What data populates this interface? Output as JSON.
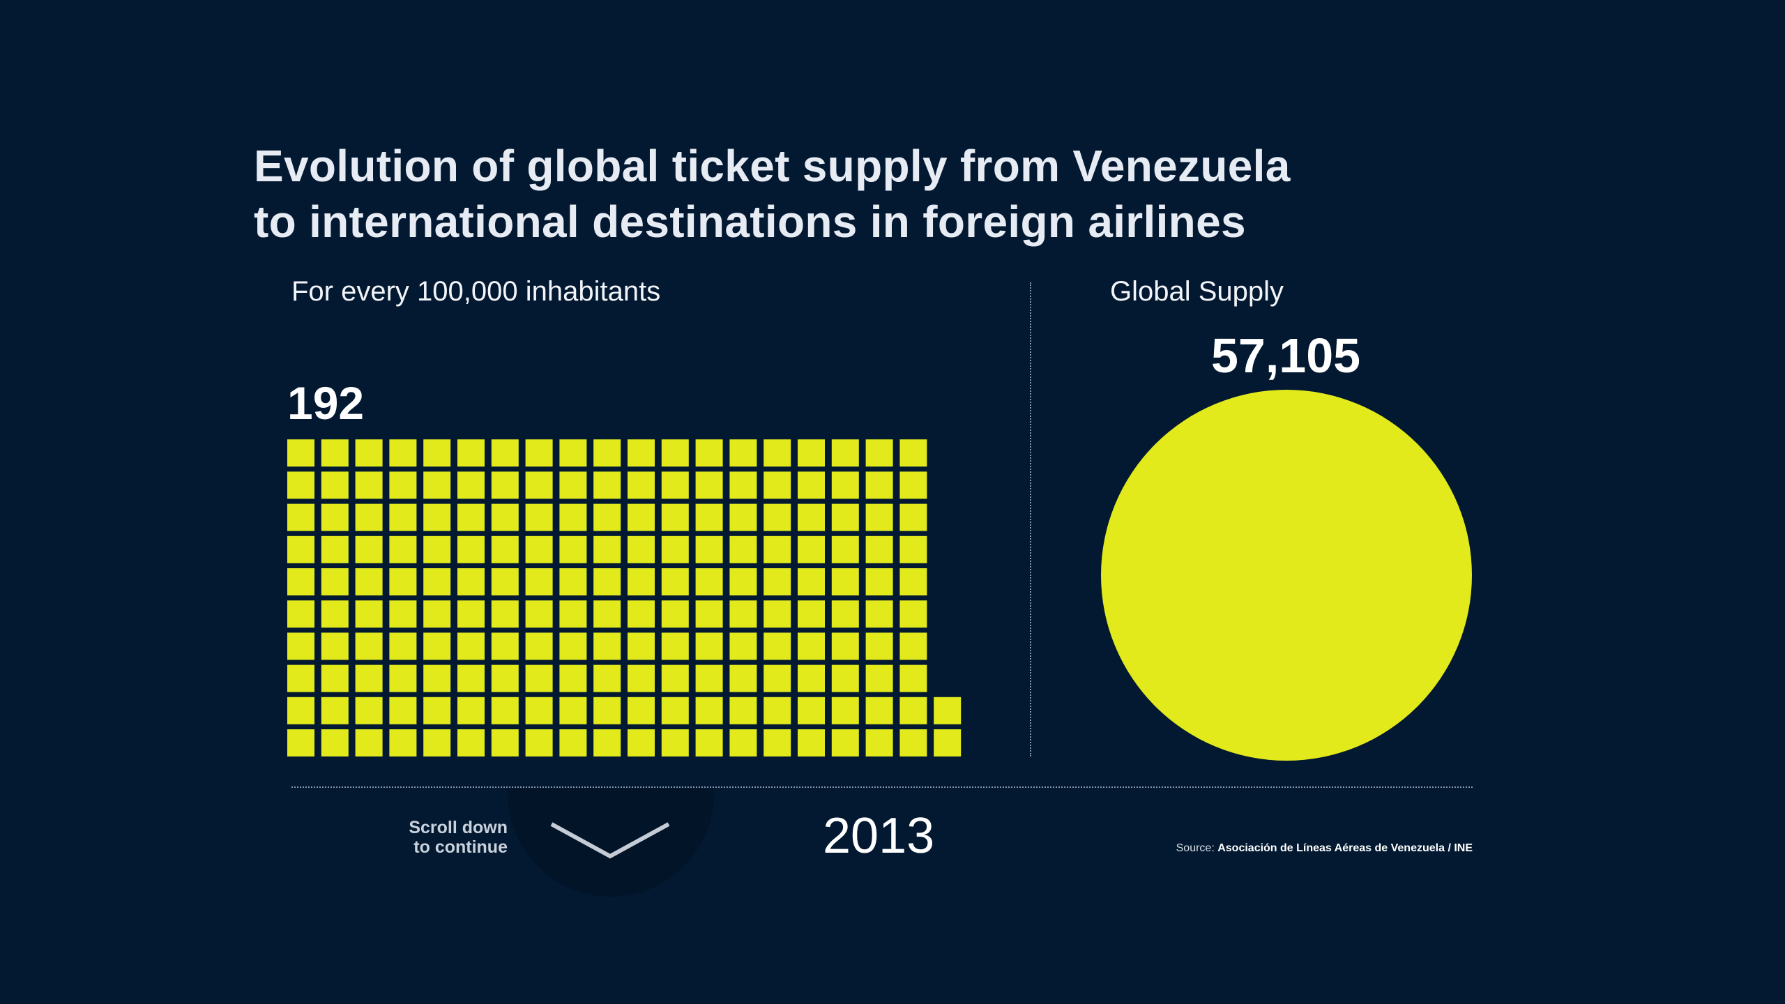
{
  "title_lines": [
    "Evolution of global ticket supply from Venezuela",
    "to international destinations in foreign airlines"
  ],
  "chart_data": [
    {
      "type": "waffle",
      "title": "For every 100,000 inhabitants",
      "value": 192,
      "value_label": "192",
      "unit_value": 1,
      "grid_rows": 10,
      "color": "#e2ea1c"
    },
    {
      "type": "bubble",
      "title": "Global Supply",
      "value": 57105,
      "value_label": "57,105",
      "color": "#e2ea1c"
    }
  ],
  "year": "2013",
  "scroll_hint": {
    "line1": "Scroll down",
    "line2": "to continue",
    "icon": "chevron-down-icon"
  },
  "source": {
    "prefix": "Source: ",
    "text": "Asociación de Líneas Aéreas de Venezuela / INE"
  },
  "colors": {
    "background": "#021931",
    "accent": "#e2ea1c",
    "text": "#e7ebf3"
  }
}
